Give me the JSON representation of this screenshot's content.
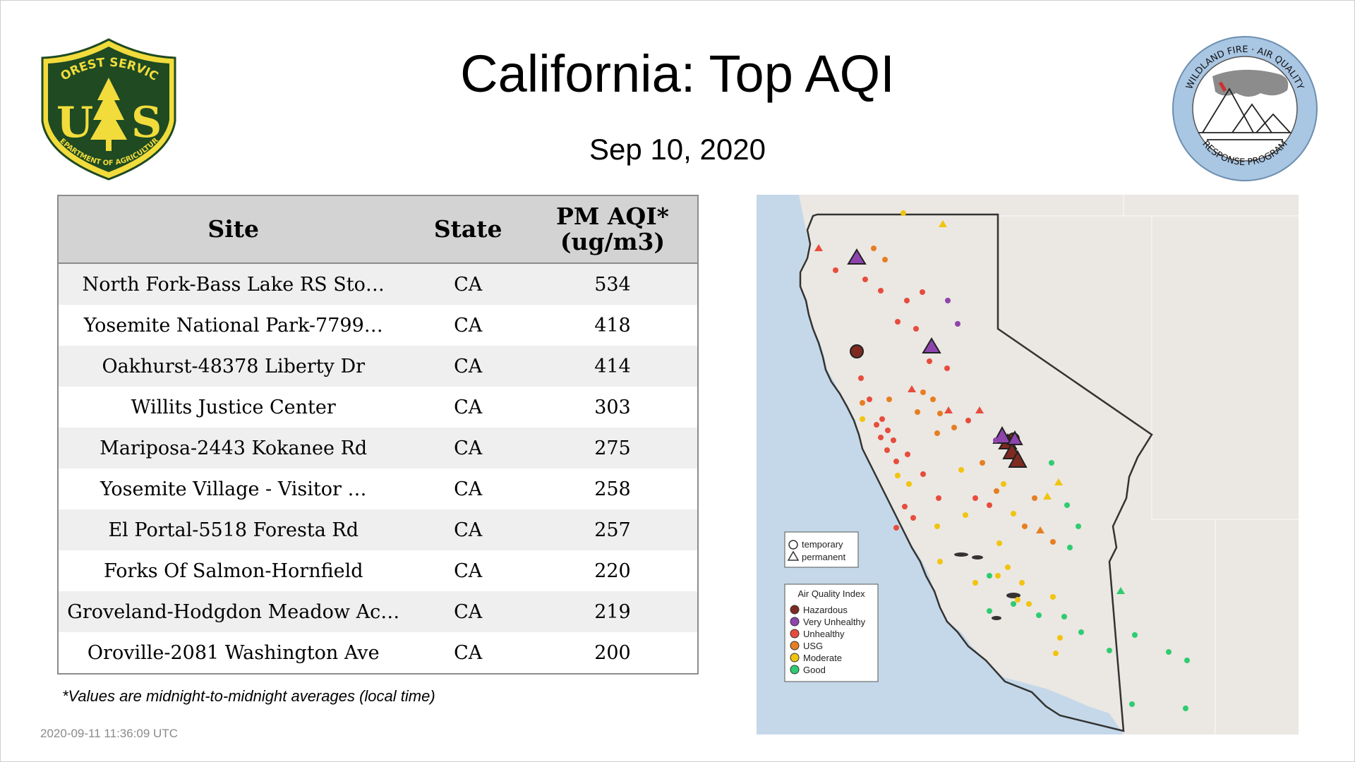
{
  "header": {
    "title": "California: Top AQI",
    "date": "Sep 10, 2020"
  },
  "logos": {
    "left": {
      "icon": "forest-service-shield",
      "text_top": "FOREST SERVICE",
      "text_letters": "U S",
      "text_bottom": "DEPARTMENT OF AGRICULTURE",
      "colors": {
        "green": "#1f4a22",
        "gold": "#f2dc3c"
      }
    },
    "right": {
      "icon": "wildland-fire-seal",
      "text_top": "WILDLAND FIRE · AIR QUALITY",
      "text_bottom": "RESPONSE PROGRAM",
      "colors": {
        "ring": "#a9c6e3",
        "smoke": "#8c8c8c"
      }
    }
  },
  "table": {
    "headers": {
      "site": "Site",
      "state": "State",
      "aqi_line1": "PM AQI*",
      "aqi_line2": "(ug/m3)"
    },
    "rows": [
      {
        "site": "North Fork-Bass Lake RS Sto…",
        "state": "CA",
        "aqi": "534"
      },
      {
        "site": "Yosemite National Park-7799…",
        "state": "CA",
        "aqi": "418"
      },
      {
        "site": "Oakhurst-48378 Liberty Dr",
        "state": "CA",
        "aqi": "414"
      },
      {
        "site": "Willits Justice Center",
        "state": "CA",
        "aqi": "303"
      },
      {
        "site": "Mariposa-2443 Kokanee Rd",
        "state": "CA",
        "aqi": "275"
      },
      {
        "site": "Yosemite Village - Visitor …",
        "state": "CA",
        "aqi": "258"
      },
      {
        "site": "El Portal-5518 Foresta Rd",
        "state": "CA",
        "aqi": "257"
      },
      {
        "site": "Forks Of Salmon-Hornfield",
        "state": "CA",
        "aqi": "220"
      },
      {
        "site": "Groveland-Hodgdon Meadow Ac…",
        "state": "CA",
        "aqi": "219"
      },
      {
        "site": "Oroville-2081 Washington Ave",
        "state": "CA",
        "aqi": "200"
      }
    ]
  },
  "footnote": "*Values are midnight-to-midnight averages (local time)",
  "timestamp": "2020-09-11 11:36:09 UTC",
  "map": {
    "shape_legend": {
      "temporary": "temporary",
      "permanent": "permanent"
    },
    "aqi_legend": {
      "title": "Air Quality Index",
      "items": [
        {
          "label": "Hazardous",
          "color": "#7e2a20"
        },
        {
          "label": "Very Unhealthy",
          "color": "#8e44ad"
        },
        {
          "label": "Unhealthy",
          "color": "#e74c3c"
        },
        {
          "label": "USG",
          "color": "#e67e22"
        },
        {
          "label": "Moderate",
          "color": "#f1c40f"
        },
        {
          "label": "Good",
          "color": "#2ecc71"
        }
      ]
    },
    "colors": {
      "ocean": "#c4d8e9",
      "land": "#ebe7e2",
      "border": "#333333"
    }
  }
}
